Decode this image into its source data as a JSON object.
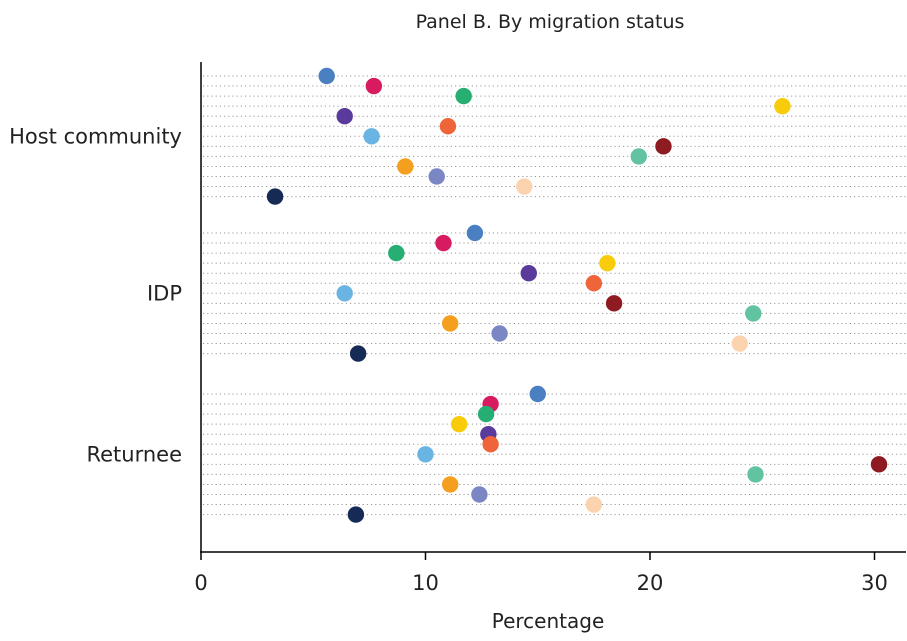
{
  "chart_data": {
    "type": "scatter",
    "title": "Panel B. By migration status",
    "xlabel": "Percentage",
    "ylabel": "",
    "xlim": [
      0,
      31.5
    ],
    "xticks": [
      0,
      10,
      20,
      30
    ],
    "grid": "dotted horizontal guide per item",
    "categories": [
      "Host community",
      "IDP",
      "Returnee"
    ],
    "item_colors": [
      "#4a7fc1",
      "#d81b60",
      "#27ae73",
      "#f9cc0b",
      "#5a3a9a",
      "#f0643a",
      "#6ab4e4",
      "#8e1a22",
      "#62c3a0",
      "#f59f1e",
      "#7b86c4",
      "#fbd3ae",
      "#152a55"
    ],
    "groups": [
      {
        "category": "Host community",
        "values": [
          5.6,
          7.7,
          11.7,
          25.9,
          6.4,
          11.0,
          7.6,
          20.6,
          19.5,
          9.1,
          10.5,
          14.4,
          3.3
        ]
      },
      {
        "category": "IDP",
        "values": [
          12.2,
          10.8,
          8.7,
          18.1,
          14.6,
          17.5,
          6.4,
          18.4,
          24.6,
          11.1,
          13.3,
          24.0,
          7.0
        ]
      },
      {
        "category": "Returnee",
        "values": [
          15.0,
          12.9,
          12.7,
          11.5,
          12.8,
          12.9,
          10.0,
          30.2,
          24.7,
          11.1,
          12.4,
          17.5,
          6.9
        ]
      }
    ]
  }
}
